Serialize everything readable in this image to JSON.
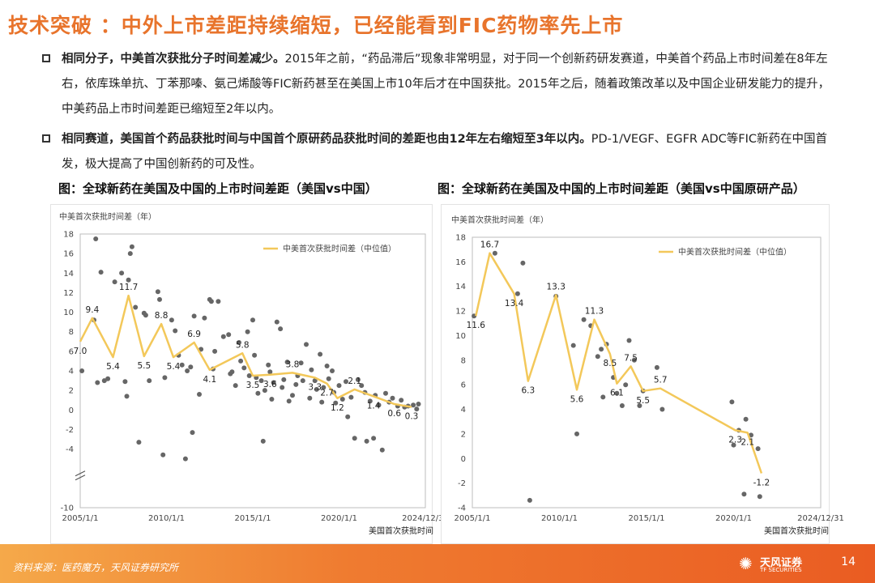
{
  "title": "技术突破 ：中外上市差距持续缩短，已经能看到FIC药物率先上市",
  "bullets": [
    {
      "bold": "相同分子，中美首次获批分子时间差减少。",
      "text": "2015年之前，“药品滞后”现象非常明显，对于同一个创新药研发赛道，中美首个药品上市时间差在8年左右，依库珠单抗、丁苯那嗪、氨己烯酸等FIC新药甚至在美国上市10年后才在中国获批。2015年之后，随着政策改革以及中国企业研发能力的提升，中美药品上市时间差距已缩短至2年以内。"
    },
    {
      "bold": "相同赛道，美国首个药品获批时间与中国首个原研药品获批时间的差距也由12年左右缩短至3年以内。",
      "text": "PD-1/VEGF、EGFR ADC等FIC新药在中国首发，极大提高了中国创新药的可及性。"
    }
  ],
  "fig_titles": [
    "图：全球新药在美国及中国的上市时间差距（美国vs中国）",
    "图：全球新药在美国及中国的上市时间差距（美国vs中国原研产品）"
  ],
  "chart_data": [
    {
      "type": "scatter",
      "ylabel": "中美首次获批时间差（年）",
      "xlabel": "美国首次获批时间",
      "xticks": [
        "2005/1/1",
        "2010/1/1",
        "2015/1/1",
        "2020/1/1",
        "2024/12/31"
      ],
      "xlim": [
        2005.0,
        2025.0
      ],
      "ylim": [
        -10,
        18
      ],
      "yticks": [
        -10,
        -4,
        -2,
        0,
        2,
        4,
        6,
        8,
        10,
        12,
        14,
        16,
        18
      ],
      "axis_break": true,
      "legend": "中美首次获批时间差（中位值）",
      "legend_position": "top-right",
      "median_line": [
        {
          "x": 2005.0,
          "y": 7.0
        },
        {
          "x": 2005.7,
          "y": 9.4
        },
        {
          "x": 2006.9,
          "y": 5.4
        },
        {
          "x": 2007.8,
          "y": 11.7
        },
        {
          "x": 2008.7,
          "y": 5.5
        },
        {
          "x": 2009.7,
          "y": 8.8
        },
        {
          "x": 2010.4,
          "y": 5.4
        },
        {
          "x": 2011.6,
          "y": 6.9
        },
        {
          "x": 2012.5,
          "y": 4.1
        },
        {
          "x": 2014.4,
          "y": 5.8
        },
        {
          "x": 2015.0,
          "y": 3.5
        },
        {
          "x": 2016.0,
          "y": 3.6
        },
        {
          "x": 2017.3,
          "y": 3.8
        },
        {
          "x": 2018.6,
          "y": 3.3
        },
        {
          "x": 2019.3,
          "y": 2.7
        },
        {
          "x": 2019.9,
          "y": 1.2
        },
        {
          "x": 2020.9,
          "y": 2.1
        },
        {
          "x": 2022.0,
          "y": 1.4
        },
        {
          "x": 2023.2,
          "y": 0.6
        },
        {
          "x": 2024.2,
          "y": 0.3
        }
      ],
      "points": [
        [
          2005.1,
          4.0
        ],
        [
          2005.8,
          9.2
        ],
        [
          2005.9,
          17.5
        ],
        [
          2006.2,
          14.1
        ],
        [
          2006.0,
          2.8
        ],
        [
          2006.4,
          3.0
        ],
        [
          2006.6,
          3.2
        ],
        [
          2007.0,
          13.1
        ],
        [
          2007.4,
          14.0
        ],
        [
          2007.7,
          1.4
        ],
        [
          2007.6,
          2.9
        ],
        [
          2007.9,
          16.0
        ],
        [
          2008.0,
          16.7
        ],
        [
          2007.8,
          13.3
        ],
        [
          2008.2,
          10.5
        ],
        [
          2008.4,
          -3.3
        ],
        [
          2008.7,
          9.9
        ],
        [
          2008.8,
          9.7
        ],
        [
          2009.0,
          3.0
        ],
        [
          2009.5,
          12.1
        ],
        [
          2009.6,
          11.3
        ],
        [
          2009.8,
          -4.6
        ],
        [
          2009.9,
          3.3
        ],
        [
          2010.3,
          9.2
        ],
        [
          2010.5,
          8.1
        ],
        [
          2010.7,
          5.6
        ],
        [
          2010.9,
          4.6
        ],
        [
          2011.1,
          -5.0
        ],
        [
          2011.2,
          4.0
        ],
        [
          2011.4,
          4.4
        ],
        [
          2011.5,
          -2.3
        ],
        [
          2011.6,
          9.6
        ],
        [
          2011.9,
          1.6
        ],
        [
          2012.0,
          6.2
        ],
        [
          2012.2,
          9.4
        ],
        [
          2012.5,
          11.3
        ],
        [
          2012.6,
          11.1
        ],
        [
          2012.7,
          4.2
        ],
        [
          2012.8,
          6.0
        ],
        [
          2013.0,
          11.1
        ],
        [
          2013.3,
          7.5
        ],
        [
          2013.6,
          7.7
        ],
        [
          2013.7,
          3.7
        ],
        [
          2013.8,
          3.9
        ],
        [
          2014.0,
          2.5
        ],
        [
          2014.2,
          6.9
        ],
        [
          2014.3,
          5.0
        ],
        [
          2014.5,
          4.3
        ],
        [
          2014.7,
          8.0
        ],
        [
          2014.8,
          3.5
        ],
        [
          2015.0,
          9.2
        ],
        [
          2015.1,
          5.6
        ],
        [
          2015.2,
          3.3
        ],
        [
          2015.3,
          1.7
        ],
        [
          2015.5,
          3.0
        ],
        [
          2015.6,
          -3.2
        ],
        [
          2015.7,
          2.0
        ],
        [
          2015.9,
          4.6
        ],
        [
          2016.0,
          3.9
        ],
        [
          2016.1,
          1.1
        ],
        [
          2016.2,
          2.8
        ],
        [
          2016.4,
          9.0
        ],
        [
          2016.6,
          8.3
        ],
        [
          2016.7,
          2.3
        ],
        [
          2016.8,
          3.1
        ],
        [
          2017.0,
          4.9
        ],
        [
          2017.1,
          0.9
        ],
        [
          2017.3,
          1.5
        ],
        [
          2017.5,
          2.6
        ],
        [
          2017.6,
          3.5
        ],
        [
          2017.8,
          4.8
        ],
        [
          2017.9,
          3.0
        ],
        [
          2018.1,
          6.7
        ],
        [
          2018.3,
          1.2
        ],
        [
          2018.4,
          4.1
        ],
        [
          2018.6,
          3.0
        ],
        [
          2018.7,
          2.1
        ],
        [
          2018.9,
          5.7
        ],
        [
          2019.0,
          0.8
        ],
        [
          2019.1,
          2.3
        ],
        [
          2019.3,
          4.5
        ],
        [
          2019.4,
          3.2
        ],
        [
          2019.6,
          4.0
        ],
        [
          2019.7,
          1.8
        ],
        [
          2019.8,
          0.7
        ],
        [
          2020.0,
          2.5
        ],
        [
          2020.2,
          1.1
        ],
        [
          2020.4,
          2.9
        ],
        [
          2020.5,
          -0.7
        ],
        [
          2020.7,
          1.3
        ],
        [
          2020.9,
          -2.9
        ],
        [
          2021.1,
          3.1
        ],
        [
          2021.3,
          2.5
        ],
        [
          2021.5,
          1.8
        ],
        [
          2021.6,
          -3.2
        ],
        [
          2021.8,
          0.9
        ],
        [
          2022.0,
          -2.9
        ],
        [
          2022.1,
          1.5
        ],
        [
          2022.3,
          0.5
        ],
        [
          2022.5,
          -4.1
        ],
        [
          2022.7,
          1.7
        ],
        [
          2022.9,
          0.8
        ],
        [
          2023.1,
          1.2
        ],
        [
          2023.4,
          0.4
        ],
        [
          2023.6,
          1.0
        ],
        [
          2023.8,
          0.3
        ],
        [
          2024.0,
          0.4
        ],
        [
          2024.3,
          0.5
        ],
        [
          2024.5,
          0.1
        ],
        [
          2024.6,
          0.6
        ]
      ]
    },
    {
      "type": "scatter",
      "ylabel": "中美首次获批时间差（年）",
      "xlabel": "美国首次获批时间",
      "xticks": [
        "2005/1/1",
        "2010/1/1",
        "2015/1/1",
        "2020/1/1",
        "2024/12/31"
      ],
      "xlim": [
        2005.0,
        2025.0
      ],
      "ylim": [
        -4,
        18
      ],
      "yticks": [
        -4,
        -2,
        0,
        2,
        4,
        6,
        8,
        10,
        12,
        14,
        16,
        18
      ],
      "legend": "中美首次获批时间差（中位值）",
      "legend_position": "top-right",
      "median_line": [
        {
          "x": 2005.2,
          "y": 11.6
        },
        {
          "x": 2006.0,
          "y": 16.7
        },
        {
          "x": 2007.4,
          "y": 13.4
        },
        {
          "x": 2008.2,
          "y": 6.3
        },
        {
          "x": 2009.8,
          "y": 13.3
        },
        {
          "x": 2011.0,
          "y": 5.6
        },
        {
          "x": 2012.0,
          "y": 11.3
        },
        {
          "x": 2012.9,
          "y": 8.5
        },
        {
          "x": 2013.3,
          "y": 6.1
        },
        {
          "x": 2014.1,
          "y": 7.5
        },
        {
          "x": 2014.8,
          "y": 5.5
        },
        {
          "x": 2015.8,
          "y": 5.7
        },
        {
          "x": 2020.1,
          "y": 2.3
        },
        {
          "x": 2020.8,
          "y": 2.1
        },
        {
          "x": 2021.6,
          "y": -1.2
        }
      ],
      "points": [
        [
          2005.1,
          11.6
        ],
        [
          2006.3,
          16.7
        ],
        [
          2007.6,
          13.4
        ],
        [
          2007.9,
          15.9
        ],
        [
          2008.3,
          -3.4
        ],
        [
          2009.8,
          13.2
        ],
        [
          2010.8,
          9.2
        ],
        [
          2011.0,
          2.0
        ],
        [
          2011.4,
          11.3
        ],
        [
          2011.8,
          10.8
        ],
        [
          2012.2,
          8.3
        ],
        [
          2012.4,
          8.9
        ],
        [
          2012.5,
          5.0
        ],
        [
          2012.7,
          9.3
        ],
        [
          2013.1,
          6.6
        ],
        [
          2013.3,
          5.3
        ],
        [
          2013.6,
          4.3
        ],
        [
          2013.8,
          6.0
        ],
        [
          2014.0,
          9.6
        ],
        [
          2014.3,
          8.0
        ],
        [
          2014.6,
          4.3
        ],
        [
          2014.8,
          5.5
        ],
        [
          2015.6,
          7.4
        ],
        [
          2015.9,
          4.0
        ],
        [
          2019.9,
          4.6
        ],
        [
          2020.0,
          1.1
        ],
        [
          2020.3,
          2.3
        ],
        [
          2020.6,
          -2.9
        ],
        [
          2020.7,
          3.2
        ],
        [
          2021.0,
          1.9
        ],
        [
          2021.4,
          0.8
        ],
        [
          2021.5,
          -3.1
        ]
      ]
    }
  ],
  "footer": {
    "source": "资料来源：医药魔方，天风证券研究所",
    "logo_text": "天风证券",
    "logo_sub": "TF SECURITIES",
    "page_number": "14"
  },
  "colors": {
    "accent": "#e8742c",
    "median_line": "#f3c85a",
    "points": "#666666"
  }
}
